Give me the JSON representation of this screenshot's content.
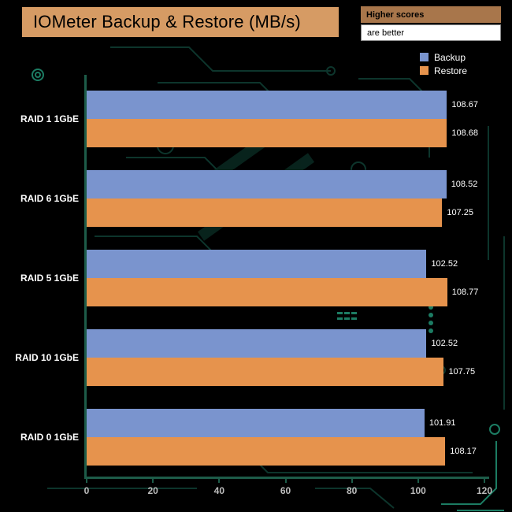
{
  "header": {
    "title": "IOMeter Backup & Restore (MB/s)",
    "higher_scores_label": "Higher scores",
    "are_better_label": "are better"
  },
  "colors": {
    "background": "#000000",
    "title_box_bg": "#D69B64",
    "higher_scores_bg": "#A8764B",
    "are_better_bg": "#FFFFFF",
    "axis": "#1d5c49",
    "backup_bar": "#7A94CE",
    "restore_bar": "#E6934D",
    "circuit_trace_dark": "#0d352c",
    "circuit_trace_bright": "#1c7c63",
    "tick_text": "#bdbdbd",
    "label_text": "#ffffff"
  },
  "chart_data": {
    "type": "bar",
    "orientation": "horizontal",
    "title": "IOMeter Backup & Restore (MB/s)",
    "categories": [
      "RAID 1 1GbE",
      "RAID 6 1GbE",
      "RAID 5 1GbE",
      "RAID 10 1GbE",
      "RAID 0 1GbE"
    ],
    "series": [
      {
        "name": "Backup",
        "color": "#7A94CE",
        "values": [
          108.67,
          108.52,
          102.52,
          102.52,
          101.91
        ]
      },
      {
        "name": "Restore",
        "color": "#E6934D",
        "values": [
          108.68,
          107.25,
          108.77,
          107.75,
          108.17
        ]
      }
    ],
    "xlabel": "",
    "ylabel": "",
    "xlim": [
      0,
      120
    ],
    "xticks": [
      0,
      20,
      40,
      60,
      80,
      100,
      120
    ],
    "value_labels": true,
    "value_label_decimals": 2,
    "legend_position": "top-right",
    "grid": false
  }
}
